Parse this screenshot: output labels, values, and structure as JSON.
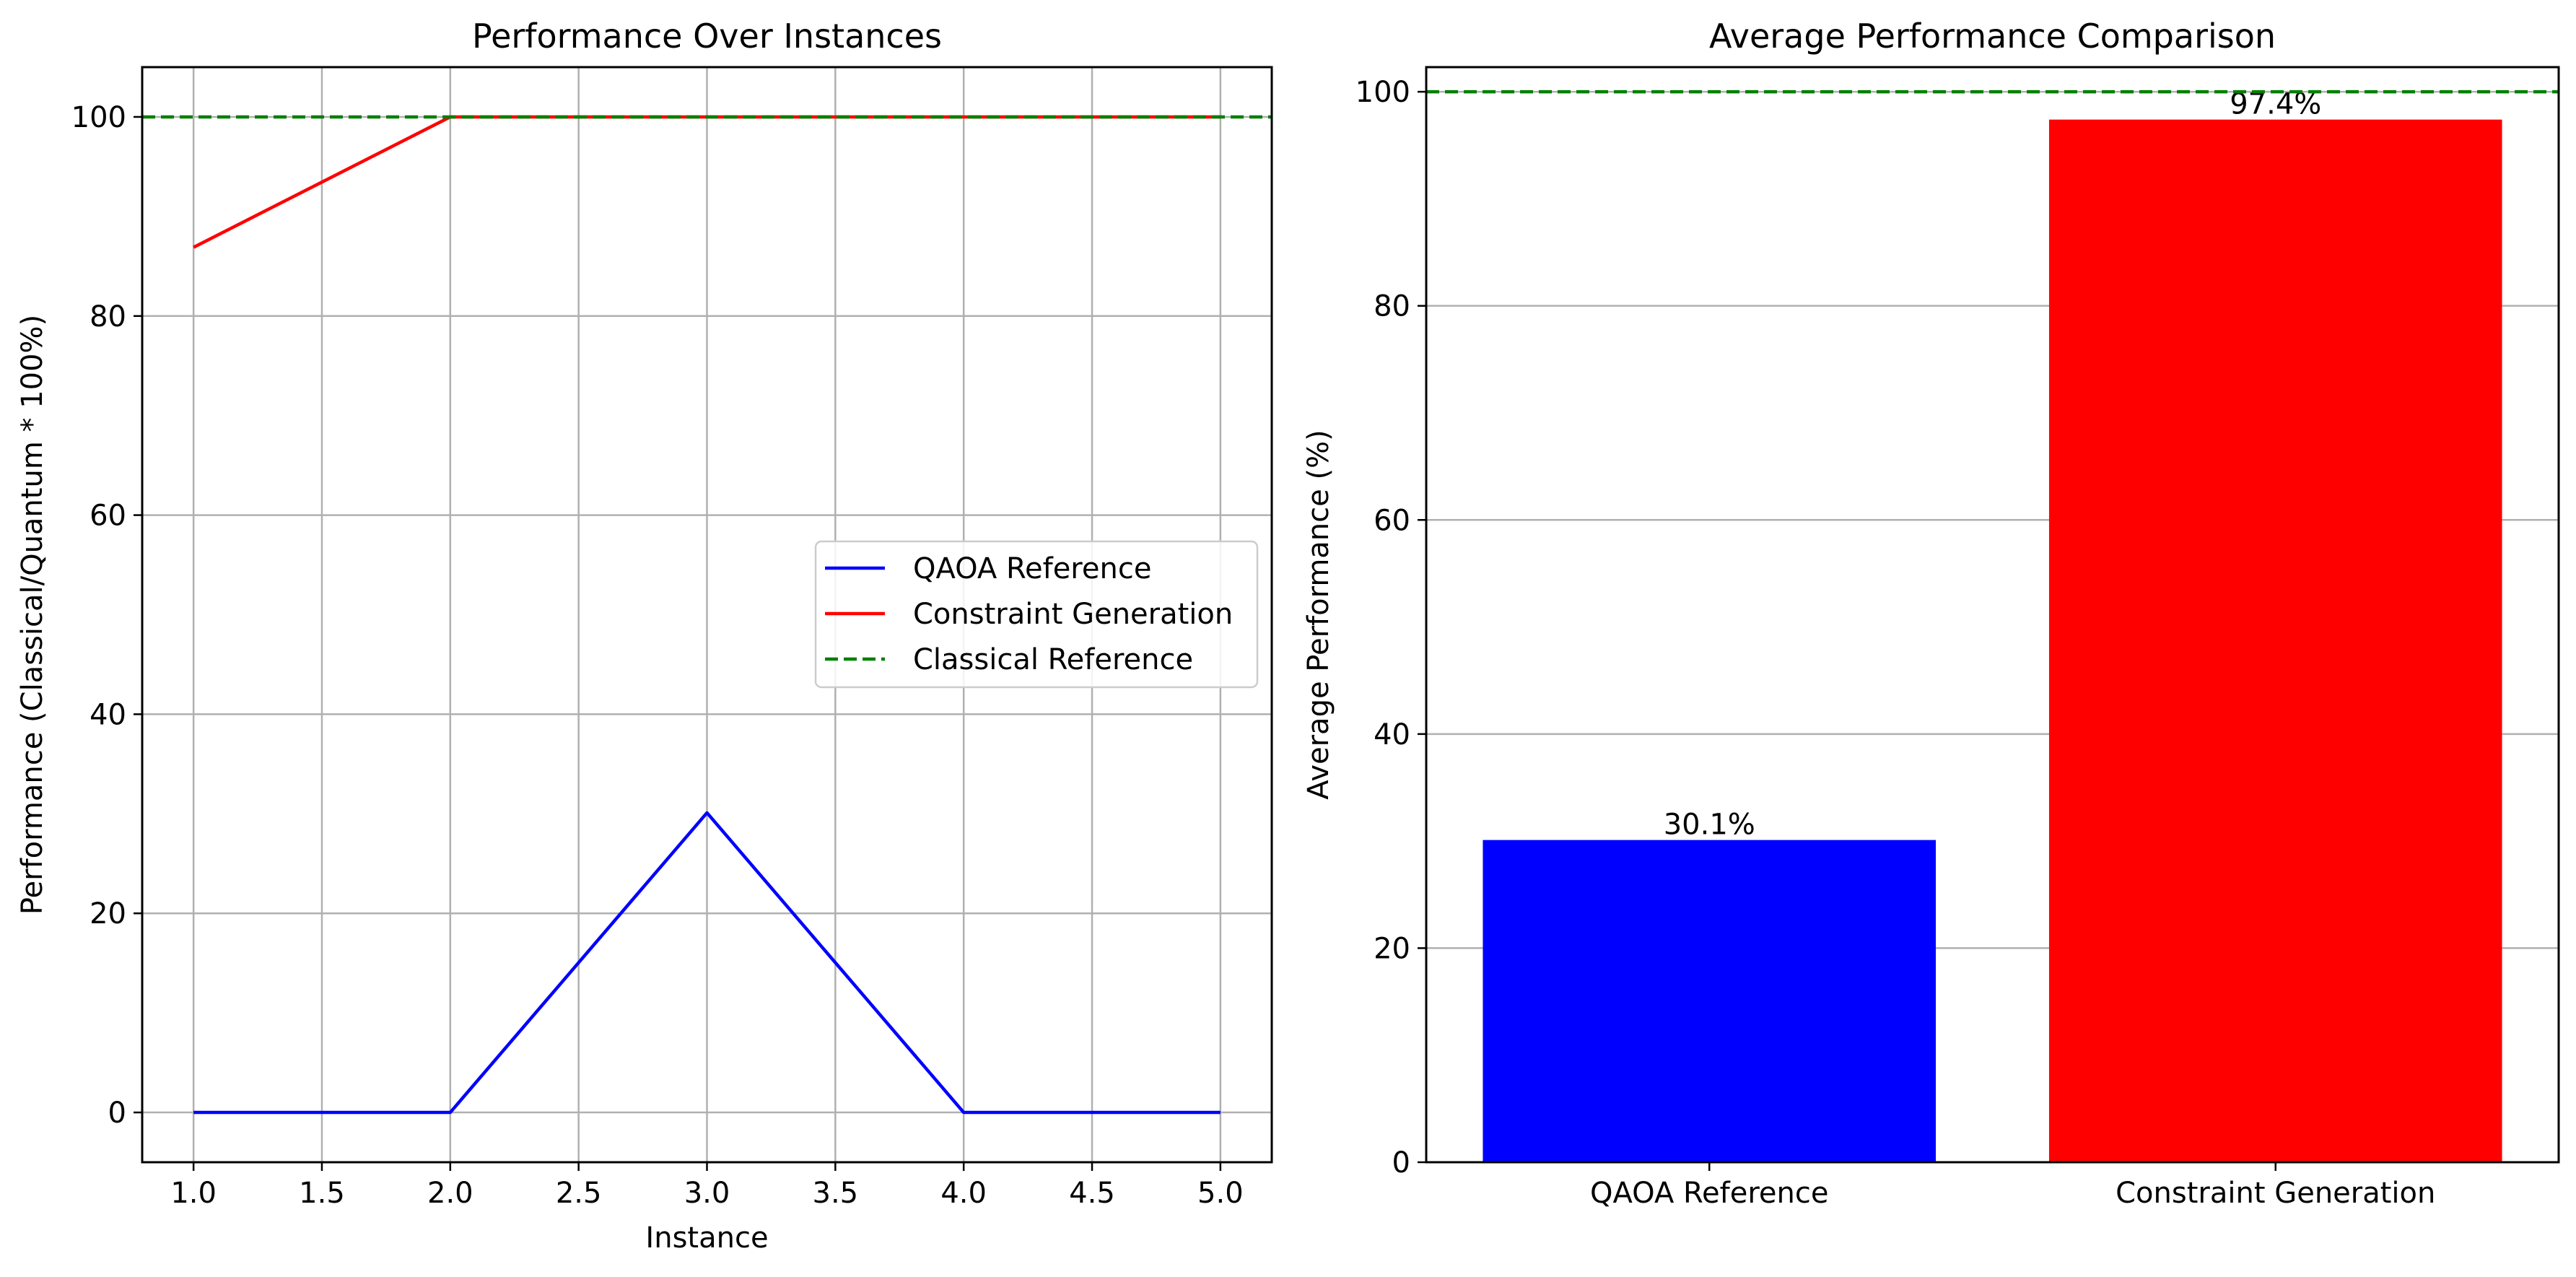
{
  "chart_data": [
    {
      "type": "line",
      "title": "Performance Over Instances",
      "xlabel": "Instance",
      "ylabel": "Performance (Classical/Quantum * 100%)",
      "x": [
        1.0,
        2.0,
        3.0,
        4.0,
        5.0
      ],
      "series": [
        {
          "name": "QAOA Reference",
          "color": "#0000ff",
          "style": "solid",
          "values": [
            0,
            0,
            30.1,
            0,
            0
          ]
        },
        {
          "name": "Constraint Generation",
          "color": "#ff0000",
          "style": "solid",
          "values": [
            86.9,
            100,
            100,
            100,
            100
          ]
        },
        {
          "name": "Classical Reference",
          "color": "#008000",
          "style": "dashed",
          "values": [
            100,
            100,
            100,
            100,
            100
          ]
        }
      ],
      "xlim": [
        0.8,
        5.2
      ],
      "ylim": [
        -5,
        105
      ],
      "xticks": [
        1.0,
        1.5,
        2.0,
        2.5,
        3.0,
        3.5,
        4.0,
        4.5,
        5.0
      ],
      "xtick_labels": [
        "1.0",
        "1.5",
        "2.0",
        "2.5",
        "3.0",
        "3.5",
        "4.0",
        "4.5",
        "5.0"
      ],
      "yticks": [
        0,
        20,
        40,
        60,
        80,
        100
      ],
      "ytick_labels": [
        "0",
        "20",
        "40",
        "60",
        "80",
        "100"
      ],
      "grid": true,
      "legend": "center-right"
    },
    {
      "type": "bar",
      "title": "Average Performance Comparison",
      "xlabel": "",
      "ylabel": "Average Performance (%)",
      "categories": [
        "QAOA Reference",
        "Constraint Generation"
      ],
      "values": [
        30.1,
        97.4
      ],
      "colors": [
        "#0000ff",
        "#ff0000"
      ],
      "data_labels": [
        "30.1%",
        "97.4%"
      ],
      "reference_line": {
        "value": 100,
        "color": "#008000",
        "style": "dashed"
      },
      "ylim": [
        0,
        102.3
      ],
      "yticks": [
        0,
        20,
        40,
        60,
        80,
        100
      ],
      "ytick_labels": [
        "0",
        "20",
        "40",
        "60",
        "80",
        "100"
      ],
      "grid": "y"
    }
  ]
}
